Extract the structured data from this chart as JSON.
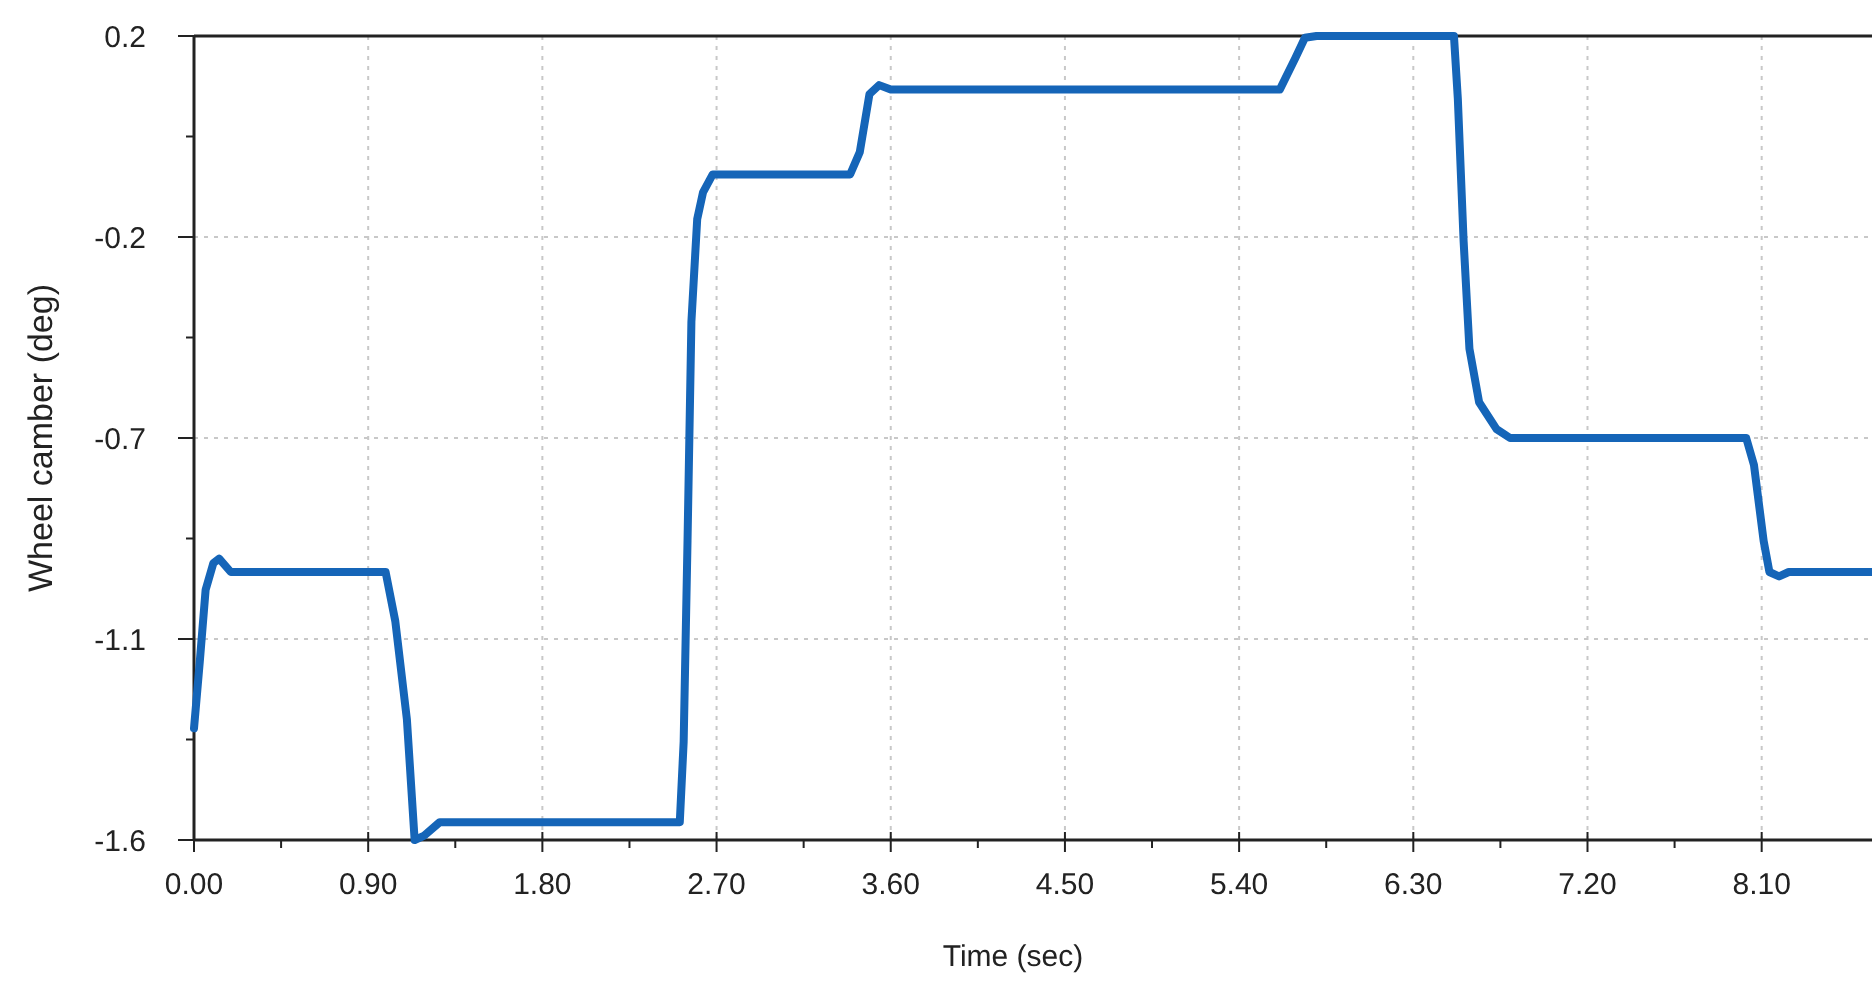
{
  "chart_data": {
    "type": "line",
    "xlabel": "Time (sec)",
    "ylabel": "Wheel camber (deg)",
    "xlim": [
      0,
      8.67
    ],
    "xticks": [
      {
        "value": 0,
        "label": "0.00"
      },
      {
        "value": 0.9,
        "label": "0.90"
      },
      {
        "value": 1.8,
        "label": "1.80"
      },
      {
        "value": 2.7,
        "label": "2.70"
      },
      {
        "value": 3.6,
        "label": "3.60"
      },
      {
        "value": 4.5,
        "label": "4.50"
      },
      {
        "value": 5.4,
        "label": "5.40"
      },
      {
        "value": 6.3,
        "label": "6.30"
      },
      {
        "value": 7.2,
        "label": "7.20"
      },
      {
        "value": 8.1,
        "label": "8.10"
      }
    ],
    "ylim": [
      -1.6,
      0.2
    ],
    "yticks": [
      {
        "value": 0.2,
        "label": "0.2"
      },
      {
        "value": -0.25,
        "label": "-0.2"
      },
      {
        "value": -0.7,
        "label": "-0.7"
      },
      {
        "value": -1.15,
        "label": "-1.1"
      },
      {
        "value": -1.6,
        "label": "-1.6"
      }
    ],
    "grid": true,
    "line_style": "solid",
    "marker": "none",
    "series": [
      {
        "color": "#1565b8",
        "x": [
          0,
          0.03,
          0.06,
          0.1,
          0.13,
          0.19,
          0.99,
          1.04,
          1.1,
          1.14,
          1.19,
          1.27,
          1.33,
          2.51,
          2.53,
          2.55,
          2.57,
          2.6,
          2.63,
          2.68,
          3.39,
          3.44,
          3.49,
          3.54,
          3.6,
          5.61,
          5.69,
          5.74,
          5.8,
          6.51,
          6.53,
          6.56,
          6.59,
          6.64,
          6.73,
          6.8,
          8.02,
          8.06,
          8.11,
          8.14,
          8.19,
          8.24,
          8.67
        ],
        "values": [
          -1.35,
          -1.2,
          -1.04,
          -0.98,
          -0.97,
          -1.0,
          -1.0,
          -1.11,
          -1.33,
          -1.6,
          -1.59,
          -1.56,
          -1.56,
          -1.56,
          -1.38,
          -0.93,
          -0.44,
          -0.21,
          -0.15,
          -0.11,
          -0.11,
          -0.06,
          0.07,
          0.09,
          0.08,
          0.08,
          0.15,
          0.196,
          0.2,
          0.2,
          0.06,
          -0.26,
          -0.5,
          -0.62,
          -0.68,
          -0.7,
          -0.7,
          -0.76,
          -0.93,
          -1.0,
          -1.01,
          -1.0,
          -1.0
        ]
      }
    ]
  }
}
